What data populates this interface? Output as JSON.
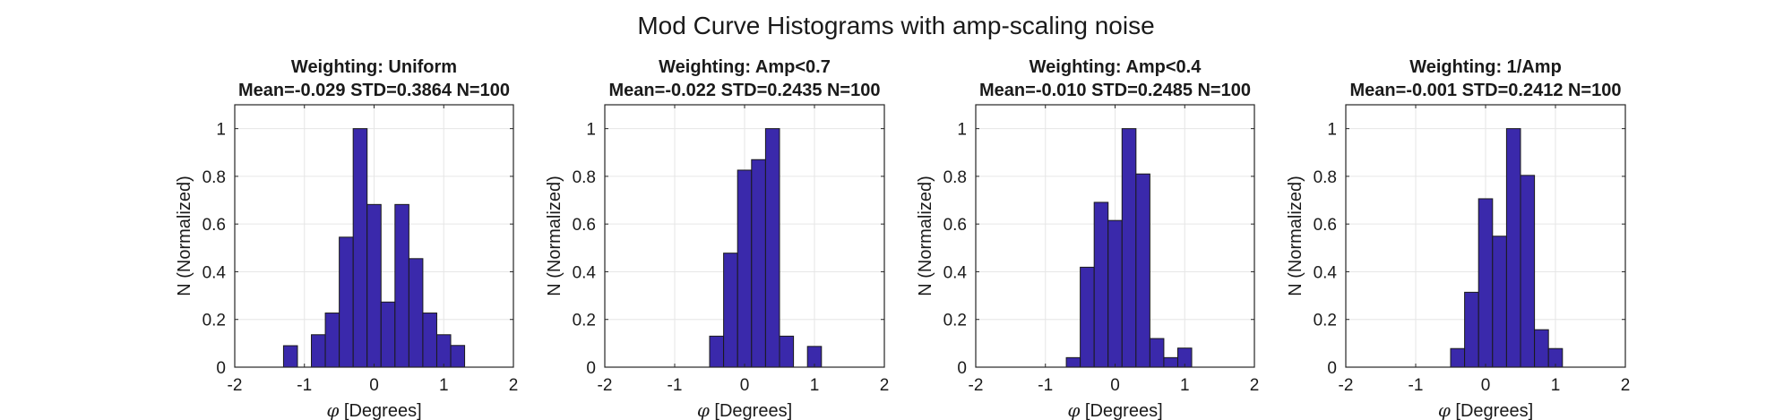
{
  "figure_title": "Mod Curve Histograms with amp-scaling noise",
  "colors": {
    "bar_fill": "#3a29ab",
    "bar_edge": "#1a1a1a",
    "grid": "#e6e6e6",
    "axis": "#262626",
    "text": "#1a1a1a"
  },
  "chart_data": [
    {
      "type": "bar",
      "title_line1": "Weighting: Uniform",
      "title_line2": "Mean=-0.029 STD=0.3864 N=100",
      "xlabel_symbol": "φ",
      "xlabel_text": " [Degrees]",
      "ylabel": "N (Normalized)",
      "xlim": [
        -2,
        2
      ],
      "ylim": [
        0,
        1.1
      ],
      "xticks": [
        -2,
        -1,
        0,
        1,
        2
      ],
      "xtick_labels": [
        "-2",
        "-1",
        "0",
        "1",
        "2"
      ],
      "yticks": [
        0,
        0.2,
        0.4,
        0.6,
        0.8,
        1
      ],
      "ytick_labels": [
        "0",
        "0.2",
        "0.4",
        "0.6",
        "0.8",
        "1"
      ],
      "grid": true,
      "bin_edges": [
        -1.5,
        -1.3,
        -1.1,
        -0.9,
        -0.7,
        -0.5,
        -0.3,
        -0.1,
        0.1,
        0.3,
        0.5,
        0.7,
        0.9,
        1.1,
        1.3,
        1.5,
        1.7
      ],
      "values": [
        0,
        0.09,
        0,
        0.136,
        0.227,
        0.545,
        1.0,
        0.682,
        0.273,
        0.682,
        0.455,
        0.227,
        0.136,
        0.091,
        0,
        0
      ]
    },
    {
      "type": "bar",
      "title_line1": "Weighting: Amp<0.7",
      "title_line2": "Mean=-0.022 STD=0.2435 N=100",
      "xlabel_symbol": "φ",
      "xlabel_text": " [Degrees]",
      "ylabel": "N (Normalized)",
      "xlim": [
        -2,
        2
      ],
      "ylim": [
        0,
        1.1
      ],
      "xticks": [
        -2,
        -1,
        0,
        1,
        2
      ],
      "xtick_labels": [
        "-2",
        "-1",
        "0",
        "1",
        "2"
      ],
      "yticks": [
        0,
        0.2,
        0.4,
        0.6,
        0.8,
        1
      ],
      "ytick_labels": [
        "0",
        "0.2",
        "0.4",
        "0.6",
        "0.8",
        "1"
      ],
      "grid": true,
      "bin_edges": [
        -1.5,
        -1.3,
        -1.1,
        -0.9,
        -0.7,
        -0.5,
        -0.3,
        -0.1,
        0.1,
        0.3,
        0.5,
        0.7,
        0.9,
        1.1,
        1.3,
        1.5,
        1.7
      ],
      "values": [
        0,
        0,
        0,
        0,
        0,
        0.13,
        0.478,
        0.826,
        0.87,
        1.0,
        0.13,
        0,
        0.087,
        0,
        0,
        0
      ]
    },
    {
      "type": "bar",
      "title_line1": "Weighting: Amp<0.4",
      "title_line2": "Mean=-0.010 STD=0.2485 N=100",
      "xlabel_symbol": "φ",
      "xlabel_text": " [Degrees]",
      "ylabel": "N (Normalized)",
      "xlim": [
        -2,
        2
      ],
      "ylim": [
        0,
        1.1
      ],
      "xticks": [
        -2,
        -1,
        0,
        1,
        2
      ],
      "xtick_labels": [
        "-2",
        "-1",
        "0",
        "1",
        "2"
      ],
      "yticks": [
        0,
        0.2,
        0.4,
        0.6,
        0.8,
        1
      ],
      "ytick_labels": [
        "0",
        "0.2",
        "0.4",
        "0.6",
        "0.8",
        "1"
      ],
      "grid": true,
      "bin_edges": [
        -1.5,
        -1.3,
        -1.1,
        -0.9,
        -0.7,
        -0.5,
        -0.3,
        -0.1,
        0.1,
        0.3,
        0.5,
        0.7,
        0.9,
        1.1,
        1.3,
        1.5,
        1.7
      ],
      "values": [
        0,
        0,
        0,
        0,
        0.04,
        0.419,
        0.691,
        0.615,
        1.0,
        0.81,
        0.12,
        0.04,
        0.08,
        0,
        0,
        0
      ]
    },
    {
      "type": "bar",
      "title_line1": "Weighting: 1/Amp",
      "title_line2": "Mean=-0.001 STD=0.2412 N=100",
      "xlabel_symbol": "φ",
      "xlabel_text": " [Degrees]",
      "ylabel": "N (Normalized)",
      "xlim": [
        -2,
        2
      ],
      "ylim": [
        0,
        1.1
      ],
      "xticks": [
        -2,
        -1,
        0,
        1,
        2
      ],
      "xtick_labels": [
        "-2",
        "-1",
        "0",
        "1",
        "2"
      ],
      "yticks": [
        0,
        0.2,
        0.4,
        0.6,
        0.8,
        1
      ],
      "ytick_labels": [
        "0",
        "0.2",
        "0.4",
        "0.6",
        "0.8",
        "1"
      ],
      "grid": true,
      "bin_edges": [
        -1.5,
        -1.3,
        -1.1,
        -0.9,
        -0.7,
        -0.5,
        -0.3,
        -0.1,
        0.1,
        0.3,
        0.5,
        0.7,
        0.9,
        1.1,
        1.3,
        1.5,
        1.7
      ],
      "values": [
        0,
        0,
        0,
        0,
        0,
        0.078,
        0.314,
        0.706,
        0.549,
        1.0,
        0.804,
        0.157,
        0.078,
        0,
        0,
        0
      ]
    }
  ]
}
